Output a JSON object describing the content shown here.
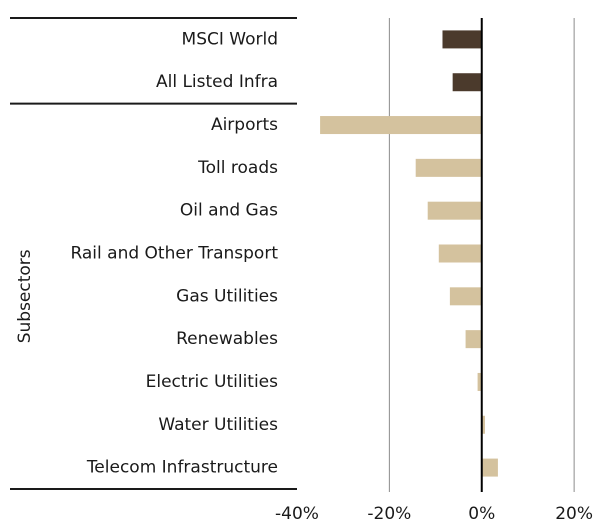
{
  "chart_data": {
    "type": "bar",
    "orientation": "horizontal",
    "groups": [
      {
        "categories": [
          "MSCI World",
          "All Listed Infra"
        ],
        "values": [
          -8.5,
          -6.3
        ],
        "color": "#4b3a2c"
      },
      {
        "name": "Subsectors",
        "categories": [
          "Airports",
          "Toll roads",
          "Oil and Gas",
          "Rail and Other Transport",
          "Gas Utilities",
          "Renewables",
          "Electric Utilities",
          "Water Utilities",
          "Telecom Infrastructure"
        ],
        "values": [
          -35,
          -14.3,
          -11.7,
          -9.3,
          -6.9,
          -3.5,
          -0.9,
          0.7,
          3.5
        ],
        "color": "#d4c29e"
      }
    ],
    "xlim": [
      -40,
      24
    ],
    "xticks": [
      {
        "value": -40,
        "label": "-40%"
      },
      {
        "value": -20,
        "label": "-20%"
      },
      {
        "value": 0,
        "label": "0%"
      },
      {
        "value": 20,
        "label": "20%"
      }
    ],
    "grid": true
  }
}
